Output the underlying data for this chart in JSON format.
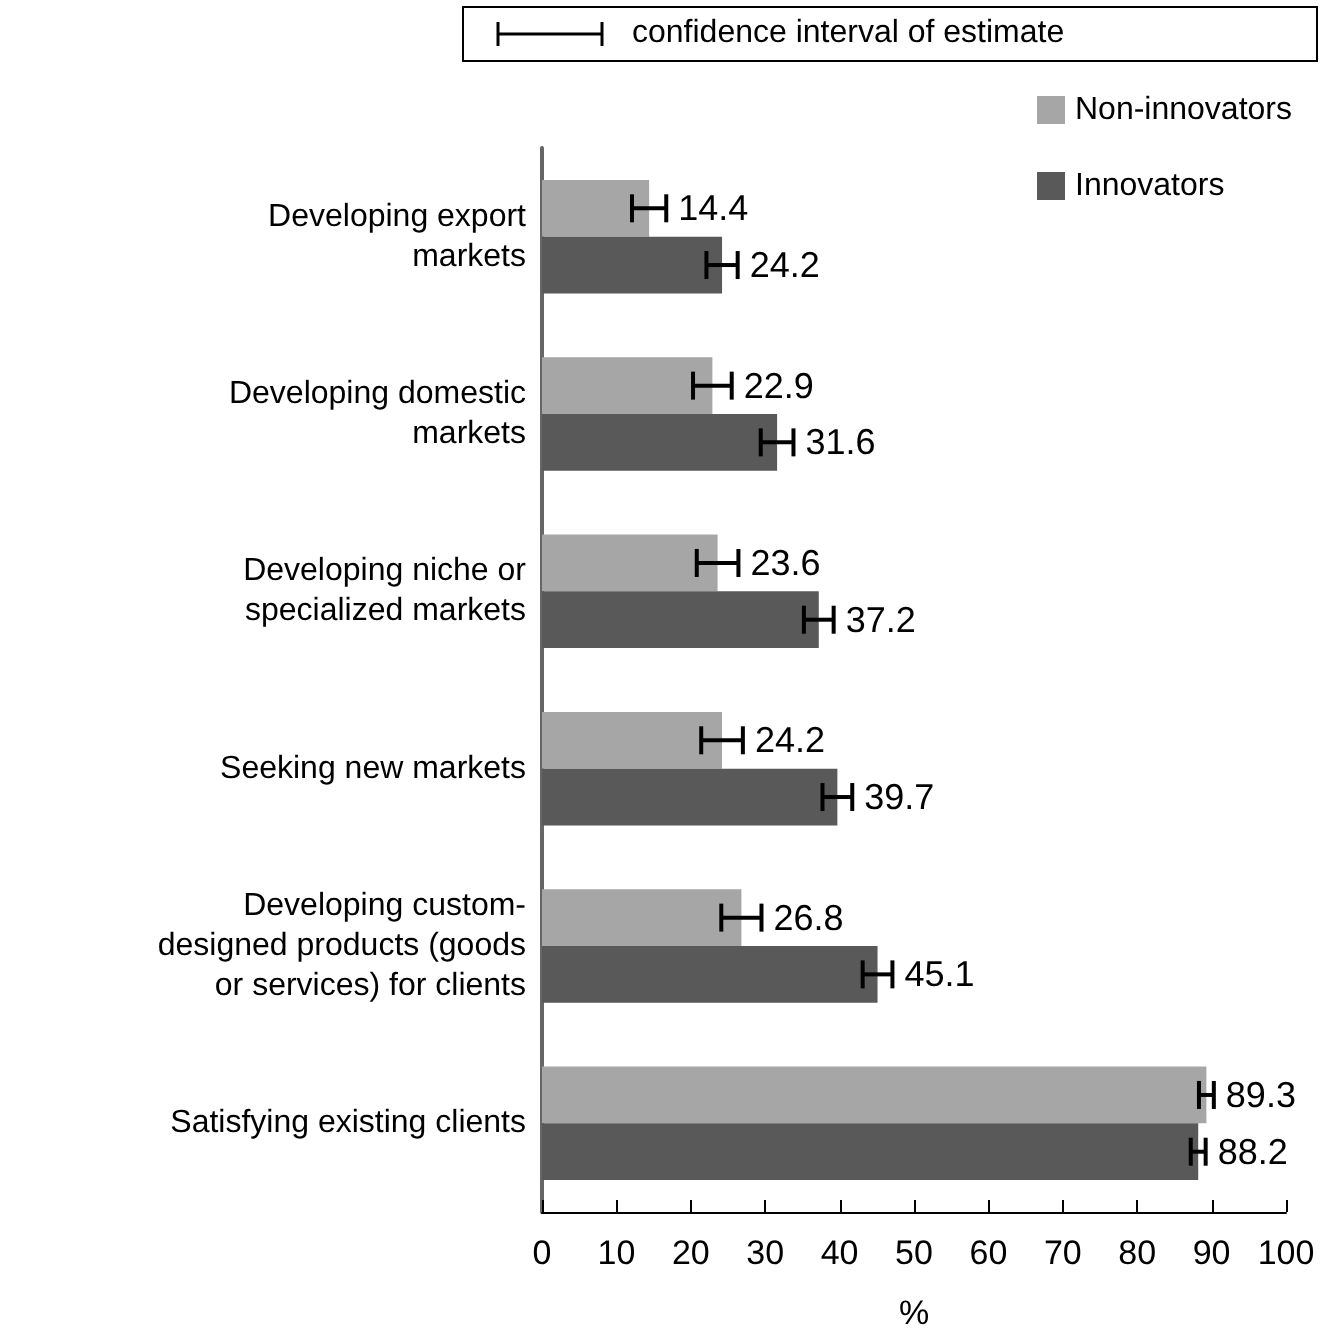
{
  "chart_data": {
    "type": "bar",
    "orientation": "horizontal",
    "xlabel": "%",
    "annotations": [
      "confidence interval of estimate"
    ],
    "categories": [
      "Developing export\nmarkets",
      "Developing domestic\nmarkets",
      "Developing niche or\nspecialized markets",
      "Seeking new markets",
      "Developing custom-\ndesigned products (goods\nor services) for clients",
      "Satisfying existing clients"
    ],
    "series": [
      {
        "name": "Non-innovators",
        "color": "#a6a6a6",
        "values": [
          14.4,
          22.9,
          23.6,
          24.2,
          26.8,
          89.3
        ],
        "errors": [
          2.3,
          2.6,
          2.8,
          2.8,
          2.7,
          1
        ]
      },
      {
        "name": "Innovators",
        "color": "#595959",
        "values": [
          24.2,
          31.6,
          37.2,
          39.7,
          45.1,
          88.2
        ],
        "errors": [
          2.1,
          2.2,
          2,
          2,
          2,
          1
        ]
      }
    ],
    "xlim": [
      0,
      100
    ],
    "xticks": [
      0,
      10,
      20,
      30,
      40,
      50,
      60,
      70,
      80,
      90,
      100
    ],
    "data_labels": true,
    "legend": "top right",
    "grid": false
  }
}
